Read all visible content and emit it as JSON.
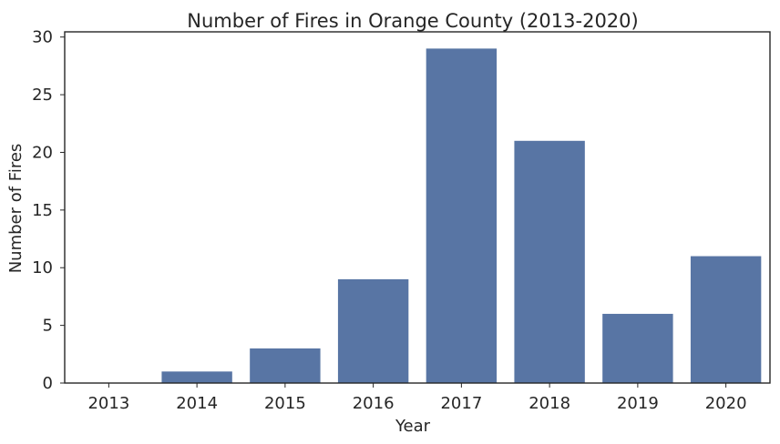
{
  "chart_data": {
    "type": "bar",
    "title": "Number of Fires in Orange County (2013-2020)",
    "xlabel": "Year",
    "ylabel": "Number of Fires",
    "categories": [
      "2013",
      "2014",
      "2015",
      "2016",
      "2017",
      "2018",
      "2019",
      "2020"
    ],
    "values": [
      0,
      1,
      3,
      9,
      29,
      21,
      6,
      11
    ],
    "ylim": [
      0,
      30.45
    ],
    "yticks": [
      0,
      5,
      10,
      15,
      20,
      25,
      30
    ],
    "grid": false,
    "legend": "none",
    "bar_color": "#5875a4",
    "axis_color": "#262626"
  }
}
